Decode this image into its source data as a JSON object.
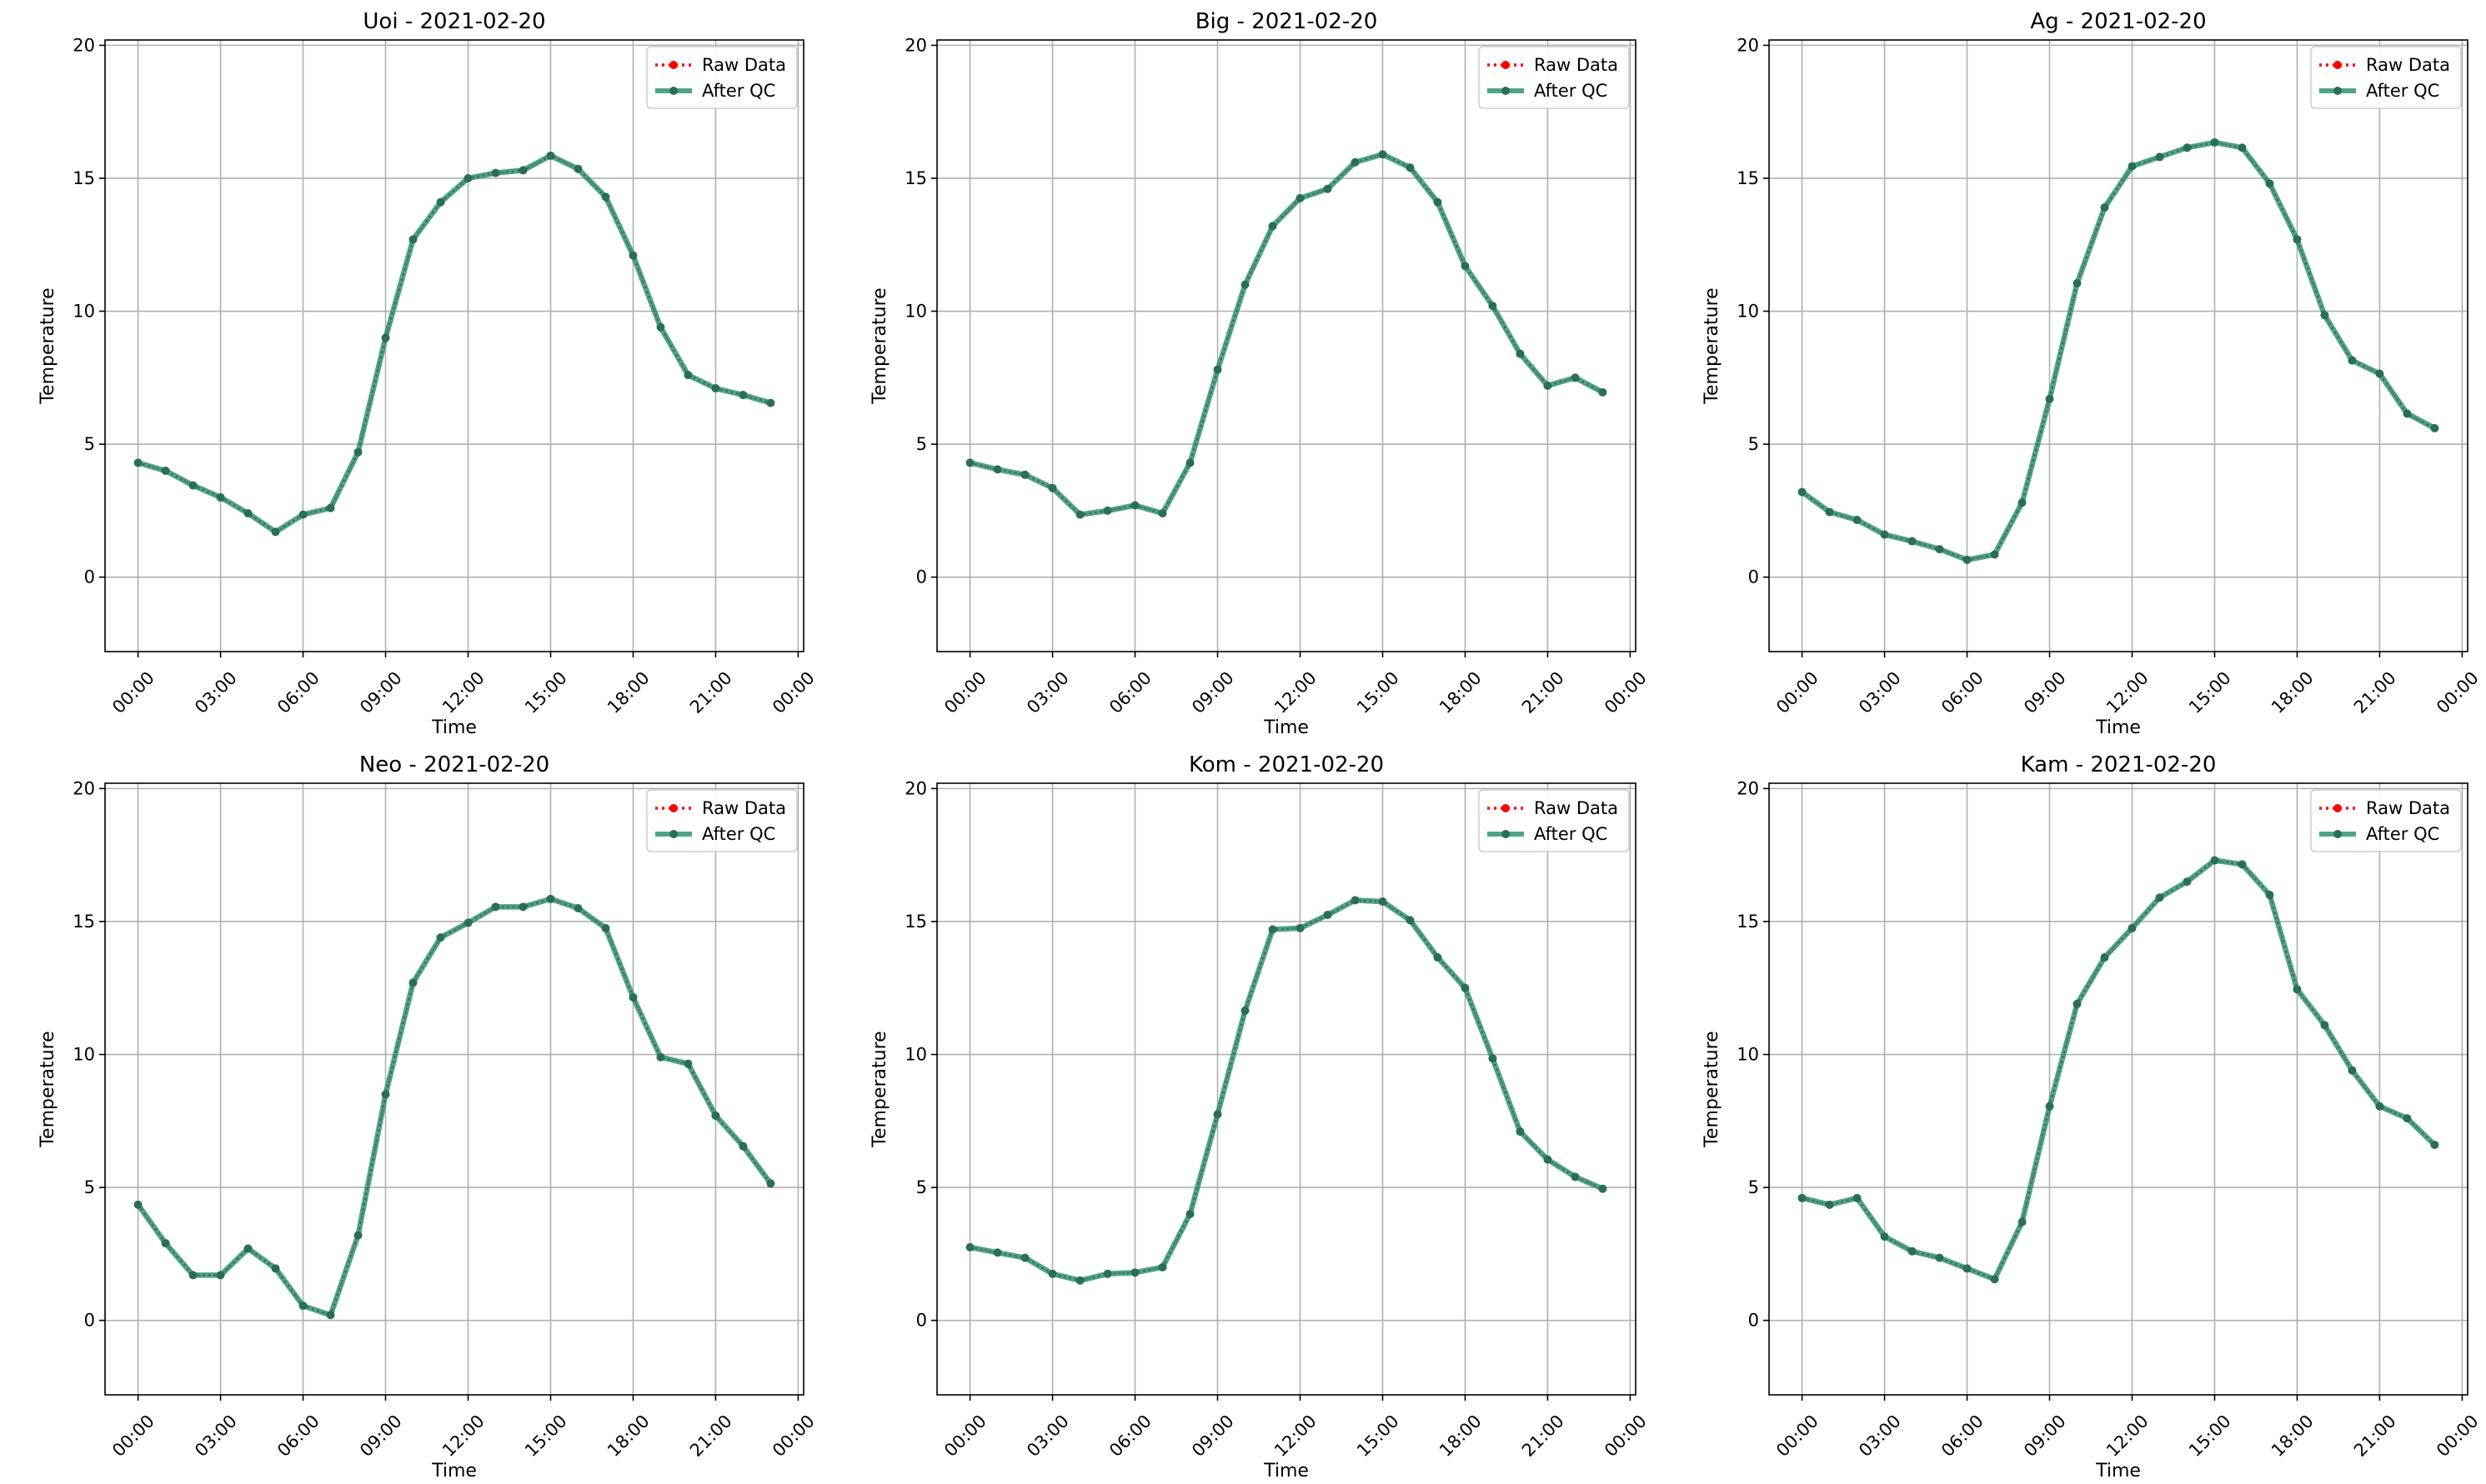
{
  "chart_data": [
    {
      "type": "line",
      "title": "Uoi - 2021-02-20",
      "xlabel": "Time",
      "ylabel": "Temperature",
      "x_ticks": [
        "00:00",
        "03:00",
        "06:00",
        "09:00",
        "12:00",
        "15:00",
        "18:00",
        "21:00",
        "00:00"
      ],
      "y_ticks": [
        0,
        5,
        10,
        15,
        20
      ],
      "xlim": [
        -1.2,
        24.2
      ],
      "ylim": [
        -2.8,
        20.2
      ],
      "grid": true,
      "legend": "top-right",
      "x": [
        0,
        1,
        2,
        3,
        4,
        5,
        6,
        7,
        8,
        9,
        10,
        11,
        12,
        13,
        14,
        15,
        16,
        17,
        18,
        19,
        20,
        21,
        22,
        23
      ],
      "series": [
        {
          "name": "Raw Data",
          "values": [
            4.3,
            4.0,
            3.45,
            3.0,
            2.4,
            1.7,
            2.35,
            2.6,
            4.7,
            9.0,
            12.7,
            14.1,
            15.0,
            15.2,
            15.3,
            15.85,
            15.35,
            14.3,
            12.1,
            9.4,
            7.6,
            7.1,
            6.85,
            6.55
          ]
        },
        {
          "name": "After QC",
          "values": [
            4.3,
            4.0,
            3.45,
            3.0,
            2.4,
            1.7,
            2.35,
            2.6,
            4.7,
            9.0,
            12.7,
            14.1,
            15.0,
            15.2,
            15.3,
            15.85,
            15.35,
            14.3,
            12.1,
            9.4,
            7.6,
            7.1,
            6.85,
            6.55
          ]
        }
      ]
    },
    {
      "type": "line",
      "title": "Big - 2021-02-20",
      "xlabel": "Time",
      "ylabel": "Temperature",
      "x_ticks": [
        "00:00",
        "03:00",
        "06:00",
        "09:00",
        "12:00",
        "15:00",
        "18:00",
        "21:00",
        "00:00"
      ],
      "y_ticks": [
        0,
        5,
        10,
        15,
        20
      ],
      "xlim": [
        -1.2,
        24.2
      ],
      "ylim": [
        -2.8,
        20.2
      ],
      "grid": true,
      "legend": "top-right",
      "x": [
        0,
        1,
        2,
        3,
        4,
        5,
        6,
        7,
        8,
        9,
        10,
        11,
        12,
        13,
        14,
        15,
        16,
        17,
        18,
        19,
        20,
        21,
        22,
        23
      ],
      "series": [
        {
          "name": "Raw Data",
          "values": [
            4.3,
            4.05,
            3.85,
            3.35,
            2.35,
            2.5,
            2.7,
            2.4,
            4.3,
            7.8,
            11.0,
            13.2,
            14.25,
            14.6,
            15.6,
            15.9,
            15.4,
            14.1,
            11.7,
            10.2,
            8.4,
            7.2,
            7.5,
            6.95
          ]
        },
        {
          "name": "After QC",
          "values": [
            4.3,
            4.05,
            3.85,
            3.35,
            2.35,
            2.5,
            2.7,
            2.4,
            4.3,
            7.8,
            11.0,
            13.2,
            14.25,
            14.6,
            15.6,
            15.9,
            15.4,
            14.1,
            11.7,
            10.2,
            8.4,
            7.2,
            7.5,
            6.95
          ]
        }
      ]
    },
    {
      "type": "line",
      "title": "Ag - 2021-02-20",
      "xlabel": "Time",
      "ylabel": "Temperature",
      "x_ticks": [
        "00:00",
        "03:00",
        "06:00",
        "09:00",
        "12:00",
        "15:00",
        "18:00",
        "21:00",
        "00:00"
      ],
      "y_ticks": [
        0,
        5,
        10,
        15,
        20
      ],
      "xlim": [
        -1.2,
        24.2
      ],
      "ylim": [
        -2.8,
        20.2
      ],
      "grid": true,
      "legend": "top-right",
      "x": [
        0,
        1,
        2,
        3,
        4,
        5,
        6,
        7,
        8,
        9,
        10,
        11,
        12,
        13,
        14,
        15,
        16,
        17,
        18,
        19,
        20,
        21,
        22,
        23
      ],
      "series": [
        {
          "name": "Raw Data",
          "values": [
            3.2,
            2.45,
            2.15,
            1.6,
            1.35,
            1.05,
            0.65,
            0.85,
            2.8,
            6.7,
            11.05,
            13.9,
            15.45,
            15.8,
            16.15,
            16.35,
            16.15,
            14.8,
            12.7,
            9.85,
            8.15,
            7.65,
            6.15,
            5.6
          ]
        },
        {
          "name": "After QC",
          "values": [
            3.2,
            2.45,
            2.15,
            1.6,
            1.35,
            1.05,
            0.65,
            0.85,
            2.8,
            6.7,
            11.05,
            13.9,
            15.45,
            15.8,
            16.15,
            16.35,
            16.15,
            14.8,
            12.7,
            9.85,
            8.15,
            7.65,
            6.15,
            5.6
          ]
        }
      ]
    },
    {
      "type": "line",
      "title": "Neo - 2021-02-20",
      "xlabel": "Time",
      "ylabel": "Temperature",
      "x_ticks": [
        "00:00",
        "03:00",
        "06:00",
        "09:00",
        "12:00",
        "15:00",
        "18:00",
        "21:00",
        "00:00"
      ],
      "y_ticks": [
        0,
        5,
        10,
        15,
        20
      ],
      "xlim": [
        -1.2,
        24.2
      ],
      "ylim": [
        -2.8,
        20.2
      ],
      "grid": true,
      "legend": "top-right",
      "x": [
        0,
        1,
        2,
        3,
        4,
        5,
        6,
        7,
        8,
        9,
        10,
        11,
        12,
        13,
        14,
        15,
        16,
        17,
        18,
        19,
        20,
        21,
        22,
        23
      ],
      "series": [
        {
          "name": "Raw Data",
          "values": [
            4.35,
            2.9,
            1.7,
            1.7,
            2.7,
            1.95,
            0.55,
            0.2,
            3.2,
            8.5,
            12.7,
            14.4,
            14.95,
            15.55,
            15.55,
            15.85,
            15.5,
            14.75,
            12.15,
            9.9,
            9.65,
            7.7,
            6.55,
            5.15
          ]
        },
        {
          "name": "After QC",
          "values": [
            4.35,
            2.9,
            1.7,
            1.7,
            2.7,
            1.95,
            0.55,
            0.2,
            3.2,
            8.5,
            12.7,
            14.4,
            14.95,
            15.55,
            15.55,
            15.85,
            15.5,
            14.75,
            12.15,
            9.9,
            9.65,
            7.7,
            6.55,
            5.15
          ]
        }
      ]
    },
    {
      "type": "line",
      "title": "Kom - 2021-02-20",
      "xlabel": "Time",
      "ylabel": "Temperature",
      "x_ticks": [
        "00:00",
        "03:00",
        "06:00",
        "09:00",
        "12:00",
        "15:00",
        "18:00",
        "21:00",
        "00:00"
      ],
      "y_ticks": [
        0,
        5,
        10,
        15,
        20
      ],
      "xlim": [
        -1.2,
        24.2
      ],
      "ylim": [
        -2.8,
        20.2
      ],
      "grid": true,
      "legend": "top-right",
      "x": [
        0,
        1,
        2,
        3,
        4,
        5,
        6,
        7,
        8,
        9,
        10,
        11,
        12,
        13,
        14,
        15,
        16,
        17,
        18,
        19,
        20,
        21,
        22,
        23
      ],
      "series": [
        {
          "name": "Raw Data",
          "values": [
            2.75,
            2.55,
            2.35,
            1.75,
            1.5,
            1.75,
            1.8,
            2.0,
            4.0,
            7.75,
            11.65,
            14.7,
            14.75,
            15.25,
            15.8,
            15.75,
            15.05,
            13.65,
            12.5,
            9.85,
            7.1,
            6.05,
            5.4,
            4.95
          ]
        },
        {
          "name": "After QC",
          "values": [
            2.75,
            2.55,
            2.35,
            1.75,
            1.5,
            1.75,
            1.8,
            2.0,
            4.0,
            7.75,
            11.65,
            14.7,
            14.75,
            15.25,
            15.8,
            15.75,
            15.05,
            13.65,
            12.5,
            9.85,
            7.1,
            6.05,
            5.4,
            4.95
          ]
        }
      ]
    },
    {
      "type": "line",
      "title": "Kam - 2021-02-20",
      "xlabel": "Time",
      "ylabel": "Temperature",
      "x_ticks": [
        "00:00",
        "03:00",
        "06:00",
        "09:00",
        "12:00",
        "15:00",
        "18:00",
        "21:00",
        "00:00"
      ],
      "y_ticks": [
        0,
        5,
        10,
        15,
        20
      ],
      "xlim": [
        -1.2,
        24.2
      ],
      "ylim": [
        -2.8,
        20.2
      ],
      "grid": true,
      "legend": "top-right",
      "x": [
        0,
        1,
        2,
        3,
        4,
        5,
        6,
        7,
        8,
        9,
        10,
        11,
        12,
        13,
        14,
        15,
        16,
        17,
        18,
        19,
        20,
        21,
        22,
        23
      ],
      "series": [
        {
          "name": "Raw Data",
          "values": [
            4.6,
            4.35,
            4.6,
            3.15,
            2.6,
            2.35,
            1.95,
            1.55,
            3.7,
            8.05,
            11.9,
            13.65,
            14.75,
            15.9,
            16.5,
            17.3,
            17.15,
            16.0,
            12.45,
            11.1,
            9.4,
            8.05,
            7.6,
            6.6
          ]
        },
        {
          "name": "After QC",
          "values": [
            4.6,
            4.35,
            4.6,
            3.15,
            2.6,
            2.35,
            1.95,
            1.55,
            3.7,
            8.05,
            11.9,
            13.65,
            14.75,
            15.9,
            16.5,
            17.3,
            17.15,
            16.0,
            12.45,
            11.1,
            9.4,
            8.05,
            7.6,
            6.6
          ]
        }
      ]
    }
  ],
  "colors": {
    "raw": "#ff0000",
    "qc": "#2e9474",
    "grid": "#b0b0b0"
  }
}
